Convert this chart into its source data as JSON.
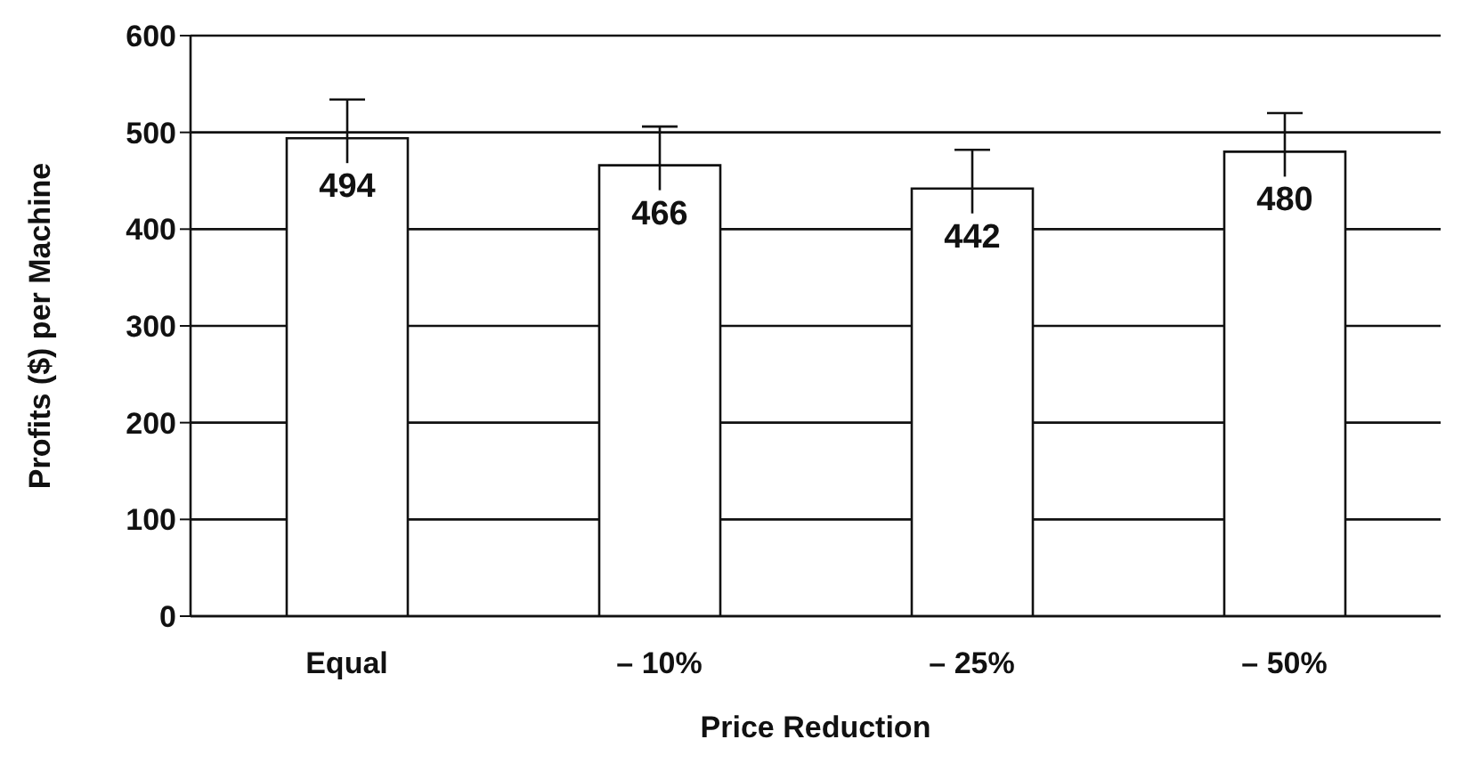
{
  "chart_data": {
    "type": "bar",
    "xlabel": "Price Reduction",
    "ylabel": "Profits ($) per Machine",
    "categories": [
      "Equal",
      "– 10%",
      "– 25%",
      "– 50%"
    ],
    "values": [
      494,
      466,
      442,
      480
    ],
    "errors": [
      40,
      40,
      40,
      40
    ],
    "color": "#ffffff",
    "ylim": [
      0,
      600
    ],
    "yticks": [
      0,
      100,
      200,
      300,
      400,
      500,
      600
    ],
    "grid": "y",
    "data_labels": true
  }
}
